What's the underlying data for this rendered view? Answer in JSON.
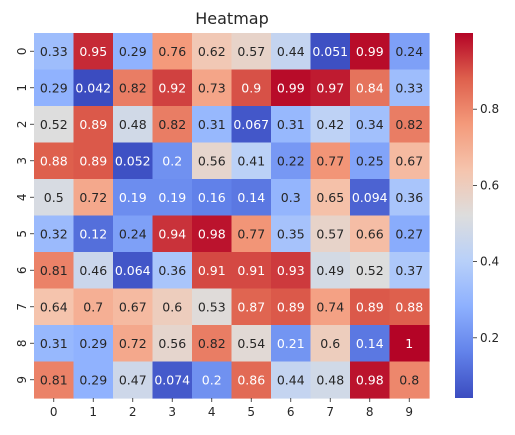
{
  "chart_data": {
    "type": "heatmap",
    "title": "Heatmap",
    "xlabel": "",
    "ylabel": "",
    "x_labels": [
      "0",
      "1",
      "2",
      "3",
      "4",
      "5",
      "6",
      "7",
      "8",
      "9"
    ],
    "y_labels": [
      "0",
      "1",
      "2",
      "3",
      "4",
      "5",
      "6",
      "7",
      "8",
      "9"
    ],
    "values": [
      [
        0.33,
        0.95,
        0.29,
        0.76,
        0.62,
        0.57,
        0.44,
        0.051,
        0.99,
        0.24
      ],
      [
        0.29,
        0.042,
        0.82,
        0.92,
        0.73,
        0.9,
        0.99,
        0.97,
        0.84,
        0.33
      ],
      [
        0.52,
        0.89,
        0.48,
        0.82,
        0.31,
        0.067,
        0.31,
        0.42,
        0.34,
        0.82
      ],
      [
        0.88,
        0.89,
        0.052,
        0.2,
        0.56,
        0.41,
        0.22,
        0.77,
        0.25,
        0.67
      ],
      [
        0.5,
        0.72,
        0.19,
        0.19,
        0.16,
        0.14,
        0.3,
        0.65,
        0.094,
        0.36
      ],
      [
        0.32,
        0.12,
        0.24,
        0.94,
        0.98,
        0.77,
        0.35,
        0.57,
        0.66,
        0.27
      ],
      [
        0.81,
        0.46,
        0.064,
        0.36,
        0.91,
        0.91,
        0.93,
        0.49,
        0.52,
        0.37
      ],
      [
        0.64,
        0.7,
        0.67,
        0.6,
        0.53,
        0.87,
        0.89,
        0.74,
        0.89,
        0.88
      ],
      [
        0.31,
        0.29,
        0.72,
        0.56,
        0.82,
        0.54,
        0.21,
        0.6,
        0.14,
        1
      ],
      [
        0.81,
        0.29,
        0.47,
        0.074,
        0.2,
        0.86,
        0.44,
        0.48,
        0.98,
        0.8
      ]
    ],
    "colormap": "coolwarm",
    "vmin": 0.042,
    "vmax": 1.0,
    "colorbar_ticks": [
      0.2,
      0.4,
      0.6,
      0.8
    ],
    "colorbar_tick_labels": [
      "0.2",
      "0.4",
      "0.6",
      "0.8"
    ],
    "annotated": true,
    "grid": false
  }
}
